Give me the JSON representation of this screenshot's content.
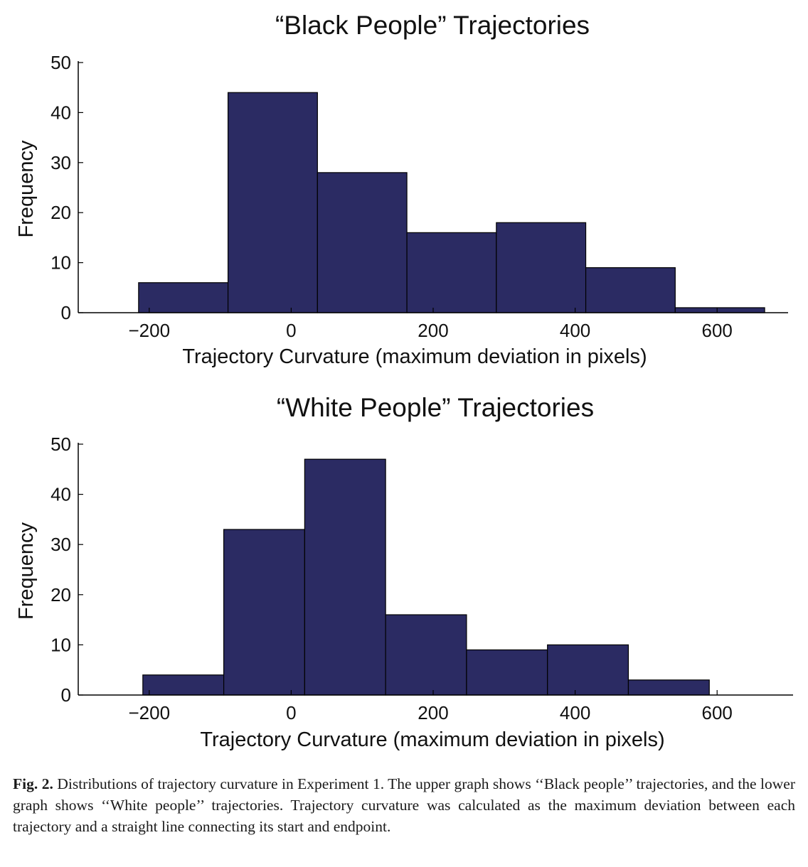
{
  "chart_data": [
    {
      "type": "bar",
      "title": "“Black People” Trajectories",
      "xlabel": "Trajectory Curvature (maximum deviation in pixels)",
      "ylabel": "Frequency",
      "xlim": [
        -300,
        700
      ],
      "ylim": [
        0,
        50
      ],
      "xticks": [
        -200,
        0,
        200,
        400,
        600
      ],
      "yticks": [
        0,
        10,
        20,
        30,
        40,
        50
      ],
      "bin_edges": [
        -215,
        -89,
        37,
        163,
        289,
        415,
        541,
        667
      ],
      "values": [
        6,
        44,
        28,
        16,
        18,
        9,
        1
      ],
      "bar_color": "#2b2b63",
      "grid": false
    },
    {
      "type": "bar",
      "title": "“White People” Trajectories",
      "xlabel": "Trajectory Curvature  (maximum deviation in pixels)",
      "ylabel": "Frequency",
      "xlim": [
        -300,
        707
      ],
      "ylim": [
        0,
        50
      ],
      "xticks": [
        -200,
        0,
        200,
        400,
        600
      ],
      "yticks": [
        0,
        10,
        20,
        30,
        40,
        50
      ],
      "bin_edges": [
        -209,
        -95,
        19,
        133,
        247,
        361,
        475,
        589
      ],
      "values": [
        4,
        33,
        47,
        16,
        9,
        10,
        3
      ],
      "bar_color": "#2b2b63",
      "grid": false
    }
  ],
  "caption": {
    "label": "Fig. 2.",
    "text": "Distributions of trajectory curvature in Experiment 1. The upper graph shows ‘‘Black people’’ trajectories, and the lower graph shows ‘‘White people’’ trajectories. Trajectory curvature was calculated as the maximum deviation between each trajectory and a straight line connecting its start and endpoint."
  }
}
